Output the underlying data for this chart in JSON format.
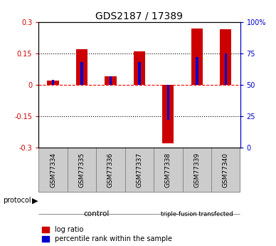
{
  "title": "GDS2187 / 17389",
  "samples": [
    "GSM77334",
    "GSM77335",
    "GSM77336",
    "GSM77337",
    "GSM77338",
    "GSM77339",
    "GSM77340"
  ],
  "log_ratio": [
    0.02,
    0.17,
    0.04,
    0.16,
    -0.28,
    0.27,
    0.265
  ],
  "percentile_rank": [
    54,
    68,
    57,
    68,
    22,
    72,
    75
  ],
  "red_bar_width": 0.4,
  "blue_bar_width": 0.09,
  "ylim": [
    -0.3,
    0.3
  ],
  "yticks_left": [
    -0.3,
    -0.15,
    0.0,
    0.15,
    0.3
  ],
  "ytick_left_labels": [
    "-0.3",
    "-0.15",
    "0",
    "0.15",
    "0.3"
  ],
  "ytick_right_labels": [
    "0",
    "25",
    "50",
    "75",
    "100%"
  ],
  "red_color": "#cc0000",
  "blue_color": "#0000cc",
  "control_color": "#bbffbb",
  "transfected_color": "#88ee88",
  "sample_box_color": "#cccccc",
  "control_samples": 4,
  "control_label": "control",
  "transfected_label": "triple-fusion transfected",
  "protocol_label": "protocol",
  "legend_log_ratio": "log ratio",
  "legend_percentile": "percentile rank within the sample",
  "title_fontsize": 10,
  "tick_fontsize": 7,
  "sample_fontsize": 6.5,
  "proto_fontsize": 7.5,
  "legend_fontsize": 7
}
